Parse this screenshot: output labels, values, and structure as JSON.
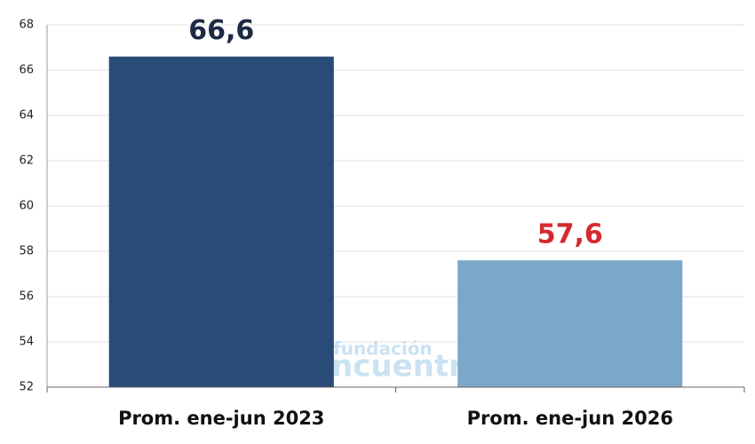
{
  "chart_data": {
    "type": "bar",
    "categories": [
      "Prom. ene-jun 2023",
      "Prom. ene-jun 2026"
    ],
    "values": [
      66.6,
      57.6
    ],
    "value_labels": [
      "66,6",
      "57,6"
    ],
    "colors": [
      "#294b78",
      "#7ba7c9"
    ],
    "label_colors": [
      "#1c2a45",
      "#d42a2f"
    ],
    "ylim": [
      52,
      68
    ],
    "yticks": [
      52,
      54,
      56,
      58,
      60,
      62,
      64,
      66,
      68
    ],
    "grid": true,
    "watermark": [
      "fundación",
      "encuentro"
    ]
  }
}
